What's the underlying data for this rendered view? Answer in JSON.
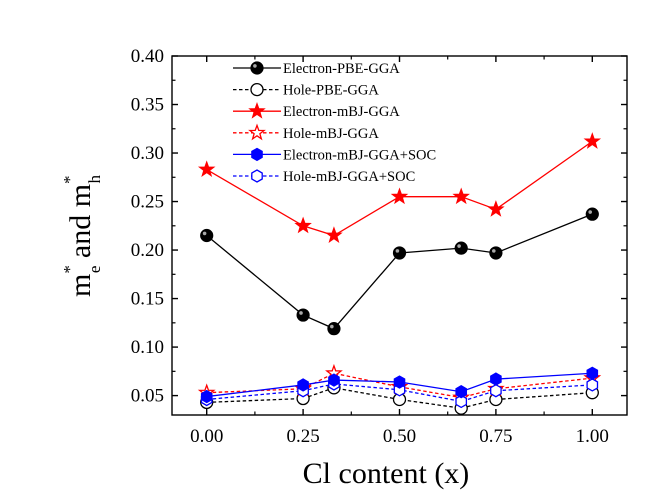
{
  "chart_data": {
    "type": "line",
    "title": "",
    "xlabel": "Cl content (x)",
    "ylabel": {
      "parts": [
        "m",
        "*",
        "e",
        " and m",
        "*",
        "h"
      ],
      "text": "m*e and m*h"
    },
    "xlim": [
      -0.09,
      1.09
    ],
    "ylim": [
      0.03,
      0.4
    ],
    "x_ticks": [
      0.0,
      0.25,
      0.5,
      0.75,
      1.0
    ],
    "x_tick_labels": [
      "0.00",
      "0.25",
      "0.50",
      "0.75",
      "1.00"
    ],
    "y_ticks": [
      0.05,
      0.1,
      0.15,
      0.2,
      0.25,
      0.3,
      0.35,
      0.4
    ],
    "y_tick_labels": [
      "0.05",
      "0.10",
      "0.15",
      "0.20",
      "0.25",
      "0.30",
      "0.35",
      "0.40"
    ],
    "grid": false,
    "legend_position": "top-left",
    "x": [
      0.0,
      0.25,
      0.33,
      0.5,
      0.66,
      0.75,
      1.0
    ],
    "series": [
      {
        "name": "Electron-PBE-GGA",
        "color": "#000000",
        "marker": "circle",
        "filled": true,
        "dashed": false,
        "values": [
          0.215,
          0.133,
          0.119,
          0.197,
          0.202,
          0.197,
          0.237
        ]
      },
      {
        "name": "Hole-PBE-GGA",
        "color": "#000000",
        "marker": "circle",
        "filled": false,
        "dashed": true,
        "values": [
          0.043,
          0.047,
          0.058,
          0.046,
          0.037,
          0.046,
          0.053
        ]
      },
      {
        "name": "Electron-mBJ-GGA",
        "color": "#ff0000",
        "marker": "star",
        "filled": true,
        "dashed": false,
        "values": [
          0.283,
          0.225,
          0.215,
          0.255,
          0.255,
          0.242,
          0.312
        ]
      },
      {
        "name": "Hole-mBJ-GGA",
        "color": "#ff0000",
        "marker": "star",
        "filled": false,
        "dashed": true,
        "values": [
          0.053,
          0.057,
          0.073,
          0.059,
          0.048,
          0.057,
          0.068
        ]
      },
      {
        "name": "Electron-mBJ-GGA+SOC",
        "color": "#0000ff",
        "marker": "hexagon",
        "filled": true,
        "dashed": false,
        "values": [
          0.049,
          0.061,
          0.066,
          0.064,
          0.054,
          0.067,
          0.073
        ]
      },
      {
        "name": "Hole-mBJ-GGA+SOC",
        "color": "#0000ff",
        "marker": "hexagon",
        "filled": false,
        "dashed": true,
        "values": [
          0.046,
          0.055,
          0.062,
          0.056,
          0.044,
          0.055,
          0.061
        ]
      }
    ]
  }
}
